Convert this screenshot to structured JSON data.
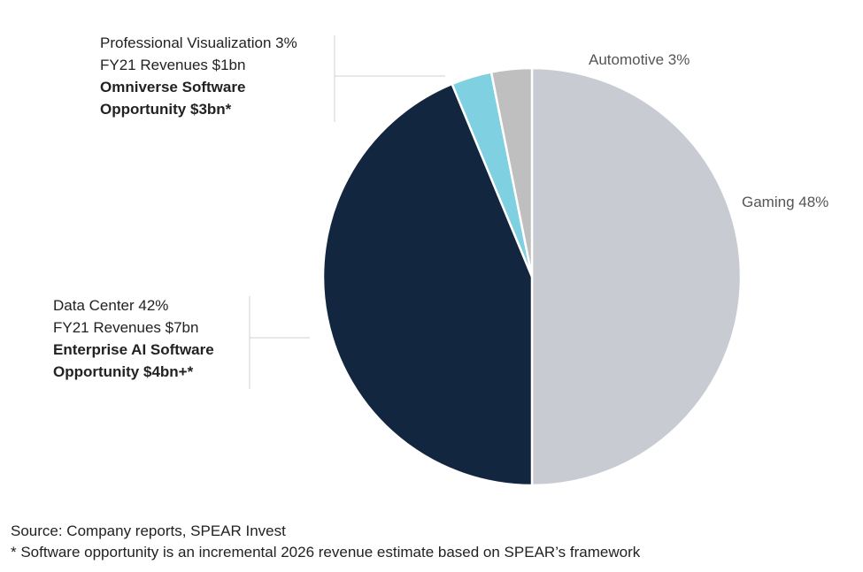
{
  "chart_data": {
    "type": "pie",
    "title": "",
    "slices": [
      {
        "key": "gaming",
        "label": "Gaming",
        "value": 48,
        "color": "#c8ccd2"
      },
      {
        "key": "data_center",
        "label": "Data Center",
        "value": 42,
        "color": "#132640"
      },
      {
        "key": "pro_viz",
        "label": "Professional Visualization",
        "value": 3,
        "color": "#7fd0e0"
      },
      {
        "key": "automotive",
        "label": "Automotive",
        "value": 3,
        "color": "#bfbfbf"
      }
    ]
  },
  "labels": {
    "automotive": "Automotive 3%",
    "gaming": "Gaming  48%",
    "pro_viz": {
      "line1": "Professional Visualization 3%",
      "line2": "FY21 Revenues $1bn",
      "line3": "Omniverse Software",
      "line4": "Opportunity $3bn*"
    },
    "data_center": {
      "line1": "Data Center 42%",
      "line2": "FY21 Revenues $7bn",
      "line3": "Enterprise AI Software",
      "line4": "Opportunity $4bn+*"
    }
  },
  "footer": {
    "source": "Source: Company reports, SPEAR Invest",
    "note": "* Software opportunity is an incremental 2026 revenue estimate based on SPEAR’s framework"
  }
}
